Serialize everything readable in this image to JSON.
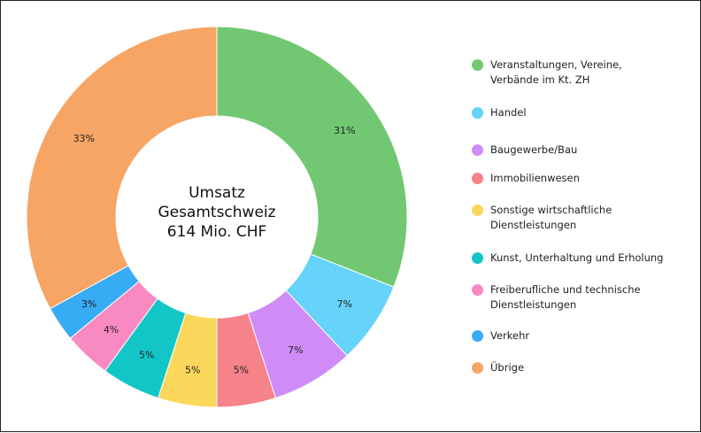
{
  "chart_data": {
    "type": "pie",
    "donut": true,
    "title": "",
    "center_text": [
      "Umsatz",
      "Gesamtschweiz",
      "614 Mio. CHF"
    ],
    "legend_position": "right",
    "slices": [
      {
        "name": "Veranstaltungen, Vereine,\nVerbände im Kt. ZH",
        "value": 31,
        "label": "31%",
        "color": "#72c872"
      },
      {
        "name": "Handel",
        "value": 7,
        "label": "7%",
        "color": "#66d3fa"
      },
      {
        "name": "Baugewerbe/Bau",
        "value": 7,
        "label": "7%",
        "color": "#cf8cf7"
      },
      {
        "name": "Immobilienwesen",
        "value": 5,
        "label": "5%",
        "color": "#f6828a"
      },
      {
        "name": "Sonstige wirtschaftliche\nDienstleistungen",
        "value": 5,
        "label": "5%",
        "color": "#fbd85b"
      },
      {
        "name": "Kunst, Unterhaltung und Erholung",
        "value": 5,
        "label": "5%",
        "color": "#12c6c8"
      },
      {
        "name": "Freiberufliche und technische\nDienstleistungen",
        "value": 4,
        "label": "4%",
        "color": "#f98ac1"
      },
      {
        "name": "Verkehr",
        "value": 3,
        "label": "3%",
        "color": "#38abf5"
      },
      {
        "name": "Übrige",
        "value": 33,
        "label": "33%",
        "color": "#f6a565"
      }
    ]
  }
}
